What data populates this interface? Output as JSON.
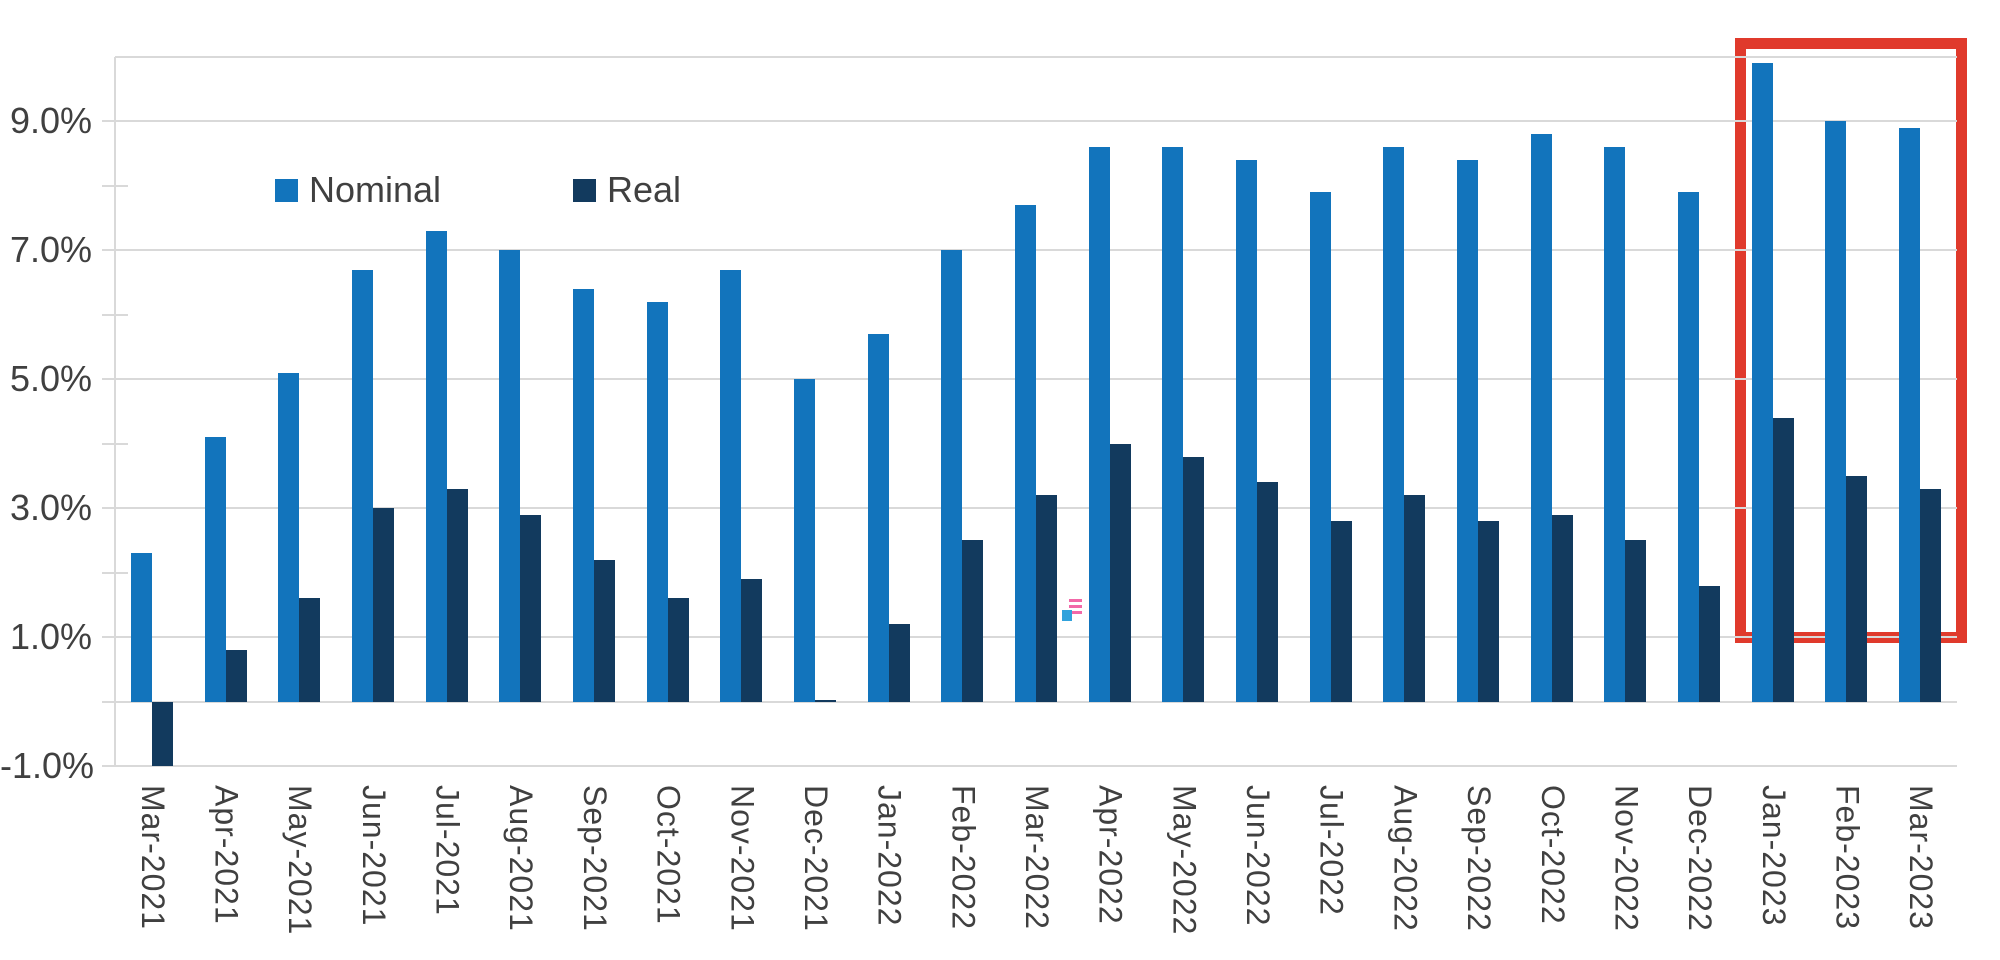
{
  "chart_data": {
    "type": "bar",
    "title": "",
    "categories": [
      "Mar-2021",
      "Apr-2021",
      "May-2021",
      "Jun-2021",
      "Jul-2021",
      "Aug-2021",
      "Sep-2021",
      "Oct-2021",
      "Nov-2021",
      "Dec-2021",
      "Jan-2022",
      "Feb-2022",
      "Mar-2022",
      "Apr-2022",
      "May-2022",
      "Jun-2022",
      "Jul-2022",
      "Aug-2022",
      "Sep-2022",
      "Oct-2022",
      "Nov-2022",
      "Dec-2022",
      "Jan-2023",
      "Feb-2023",
      "Mar-2023"
    ],
    "series": [
      {
        "name": "Nominal",
        "color": "#1274bc",
        "values": [
          2.3,
          4.1,
          5.1,
          6.7,
          7.3,
          7.0,
          6.4,
          6.2,
          6.7,
          5.0,
          5.7,
          7.0,
          7.7,
          8.6,
          8.6,
          8.4,
          7.9,
          8.6,
          8.4,
          8.8,
          8.6,
          7.9,
          9.9,
          9.0,
          8.9
        ]
      },
      {
        "name": "Real",
        "color": "#123a5e",
        "values": [
          -1.0,
          0.8,
          1.6,
          3.0,
          3.3,
          2.9,
          2.2,
          1.6,
          1.9,
          0.0,
          1.2,
          2.5,
          3.2,
          4.0,
          3.8,
          3.4,
          2.8,
          3.2,
          2.8,
          2.9,
          2.5,
          1.8,
          4.4,
          3.5,
          3.3
        ]
      }
    ],
    "y_axis": {
      "unit": "%",
      "labels": [
        "9.0%",
        "7.0%",
        "5.0%",
        "3.0%",
        "1.0%",
        "-1.0%"
      ],
      "label_values": [
        9,
        7,
        5,
        3,
        1,
        -1
      ],
      "gridline_values": [
        10,
        9,
        7,
        5,
        3,
        1,
        0,
        -1
      ],
      "minor_tick_values": [
        9,
        8,
        7,
        6,
        5,
        4,
        3,
        2,
        1,
        0,
        -1
      ],
      "top_value": 10,
      "bottom_value": -1
    },
    "grid": true,
    "legend_position": "top-left-inside",
    "highlight": {
      "type": "box",
      "color": "#e03a2c",
      "from_category": "Jan-2023",
      "to_category": "Mar-2023",
      "from_index": 22,
      "to_index": 24
    }
  },
  "colors": {
    "nominal_blue": "#1274bc",
    "real_navy": "#123a5e",
    "gridline_gray": "#d9d9d9",
    "axis_text": "#404040",
    "highlight_red": "#e03a2c"
  },
  "legend": {
    "nominal_label": "Nominal",
    "real_label": "Real"
  }
}
